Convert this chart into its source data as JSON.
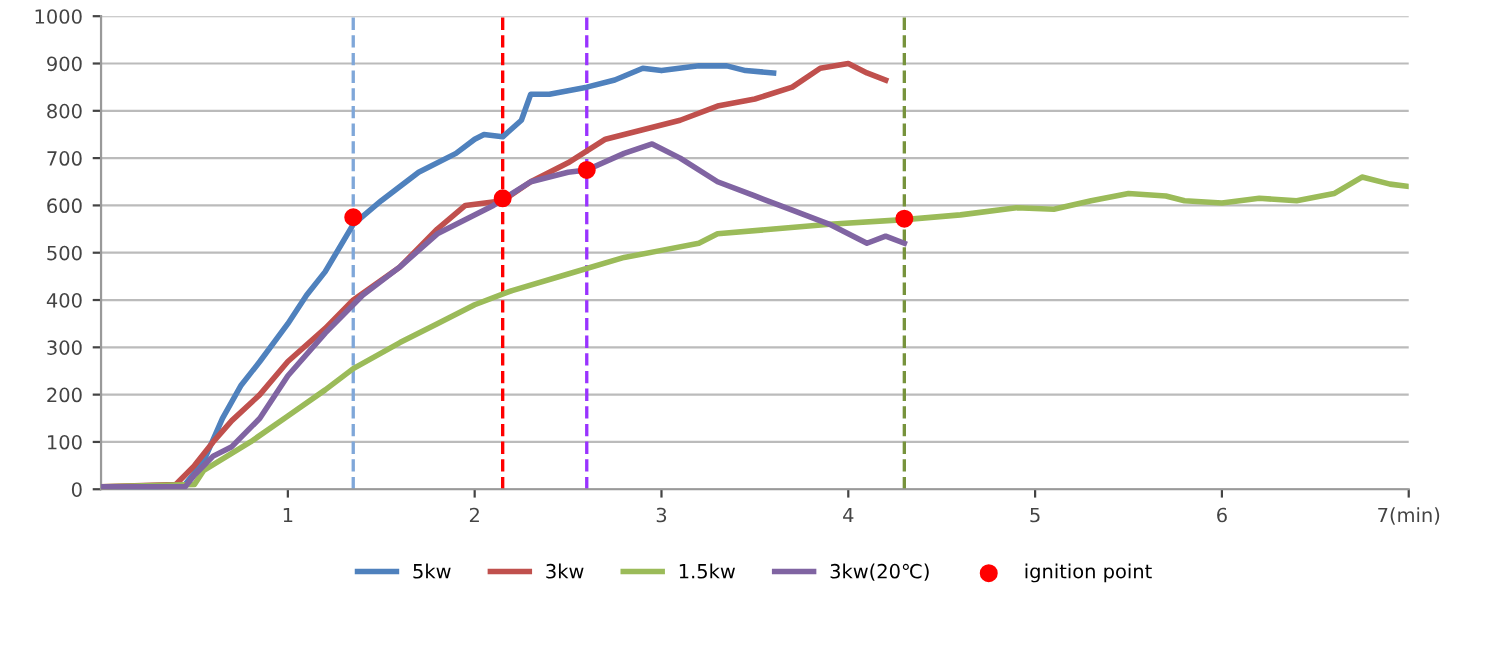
{
  "chart_data": {
    "type": "line",
    "xlim": [
      0,
      7
    ],
    "ylim": [
      0,
      1000
    ],
    "xticks": [
      {
        "value": 1,
        "label": "1"
      },
      {
        "value": 2,
        "label": "2"
      },
      {
        "value": 3,
        "label": "3"
      },
      {
        "value": 4,
        "label": "4"
      },
      {
        "value": 5,
        "label": "5"
      },
      {
        "value": 6,
        "label": "6"
      },
      {
        "value": 7,
        "label": "7(min)"
      }
    ],
    "yticks": [
      0,
      100,
      200,
      300,
      400,
      500,
      600,
      700,
      800,
      900,
      1000
    ],
    "grid": "y",
    "legend": "bottom",
    "marker": "none",
    "line_style": "solid",
    "series": [
      {
        "name": "5kw",
        "color": "#4f81bd",
        "x": [
          0,
          0.3,
          0.45,
          0.55,
          0.65,
          0.75,
          0.85,
          1.0,
          1.1,
          1.2,
          1.35,
          1.5,
          1.7,
          1.9,
          2.0,
          2.05,
          2.15,
          2.25,
          2.3,
          2.4,
          2.6,
          2.75,
          2.9,
          3.0,
          3.2,
          3.35,
          3.45,
          3.6
        ],
        "values": [
          5,
          5,
          10,
          60,
          150,
          220,
          270,
          350,
          410,
          460,
          560,
          610,
          670,
          710,
          740,
          750,
          745,
          780,
          835,
          835,
          850,
          865,
          890,
          885,
          895,
          895,
          885,
          880
        ]
      },
      {
        "name": "3kw",
        "color": "#c0504d",
        "x": [
          0,
          0.4,
          0.5,
          0.6,
          0.7,
          0.85,
          1.0,
          1.2,
          1.35,
          1.6,
          1.8,
          1.95,
          2.15,
          2.3,
          2.5,
          2.7,
          2.9,
          3.1,
          3.3,
          3.5,
          3.7,
          3.85,
          4.0,
          4.1,
          4.2
        ],
        "values": [
          5,
          10,
          50,
          100,
          145,
          200,
          270,
          340,
          400,
          470,
          550,
          600,
          610,
          650,
          690,
          740,
          760,
          780,
          810,
          825,
          850,
          890,
          900,
          880,
          865
        ]
      },
      {
        "name": "1.5kw",
        "color": "#9bbb59",
        "x": [
          0,
          0.5,
          0.55,
          0.8,
          1.0,
          1.2,
          1.35,
          1.6,
          1.8,
          2.0,
          2.2,
          2.5,
          2.8,
          3.0,
          3.2,
          3.3,
          3.6,
          3.9,
          4.3,
          4.6,
          4.9,
          5.1,
          5.3,
          5.5,
          5.7,
          5.8,
          6.0,
          6.2,
          6.4,
          6.6,
          6.75,
          6.9,
          7.0
        ],
        "values": [
          5,
          10,
          40,
          100,
          155,
          210,
          255,
          310,
          350,
          390,
          420,
          455,
          490,
          505,
          520,
          540,
          550,
          560,
          570,
          580,
          595,
          592,
          610,
          625,
          620,
          610,
          605,
          615,
          610,
          625,
          660,
          645,
          640
        ]
      },
      {
        "name": "3kw(20℃)",
        "color": "#8064a2",
        "x": [
          0,
          0.45,
          0.5,
          0.6,
          0.7,
          0.85,
          1.0,
          1.2,
          1.4,
          1.6,
          1.8,
          2.1,
          2.3,
          2.5,
          2.6,
          2.8,
          2.95,
          3.1,
          3.3,
          3.5,
          3.7,
          3.9,
          4.0,
          4.1,
          4.2,
          4.3
        ],
        "values": [
          5,
          5,
          30,
          70,
          90,
          150,
          240,
          330,
          410,
          470,
          540,
          600,
          650,
          670,
          675,
          710,
          730,
          700,
          650,
          620,
          590,
          560,
          540,
          520,
          535,
          520
        ]
      },
      {
        "name": "ignition point",
        "type": "scatter",
        "marker": "circle",
        "color": "#ff0000",
        "x": [
          1.35,
          2.15,
          2.6,
          4.3
        ],
        "values": [
          575,
          615,
          675,
          572
        ]
      }
    ],
    "ref_lines": [
      {
        "axis": "x",
        "value": 1.35,
        "color": "#7fa7d9",
        "line_style": "dashed"
      },
      {
        "axis": "x",
        "value": 2.15,
        "color": "#ff0000",
        "line_style": "dashed"
      },
      {
        "axis": "x",
        "value": 2.6,
        "color": "#9933ff",
        "line_style": "dashed"
      },
      {
        "axis": "x",
        "value": 4.3,
        "color": "#77933c",
        "line_style": "dashed"
      }
    ]
  }
}
